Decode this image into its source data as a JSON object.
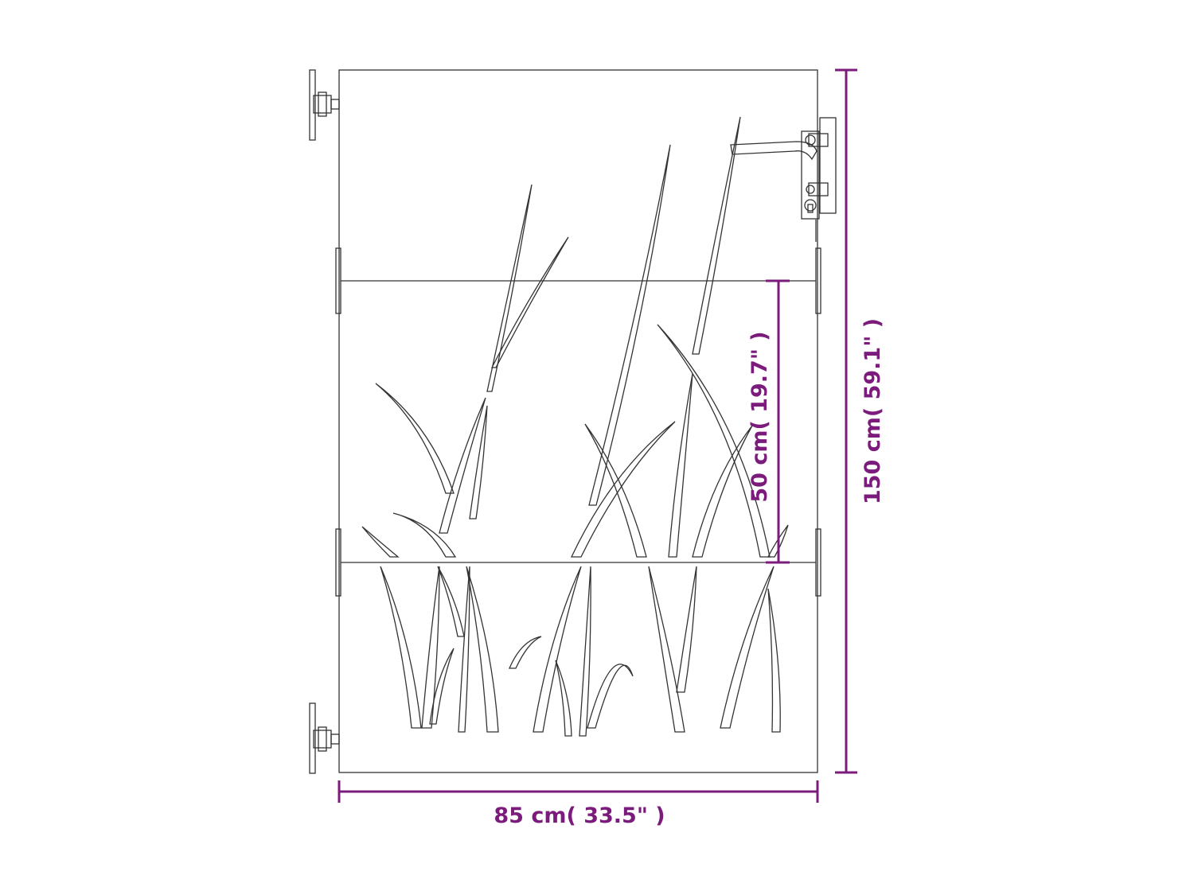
{
  "colors": {
    "dimension": "#7b1c7c",
    "outline": "#333333"
  },
  "dimensions": {
    "width_label": "85 cm( 33.5\" )",
    "height_label": "150 cm( 59.1\" )",
    "rail_spacing_label": "50 cm( 19.7\" )"
  }
}
